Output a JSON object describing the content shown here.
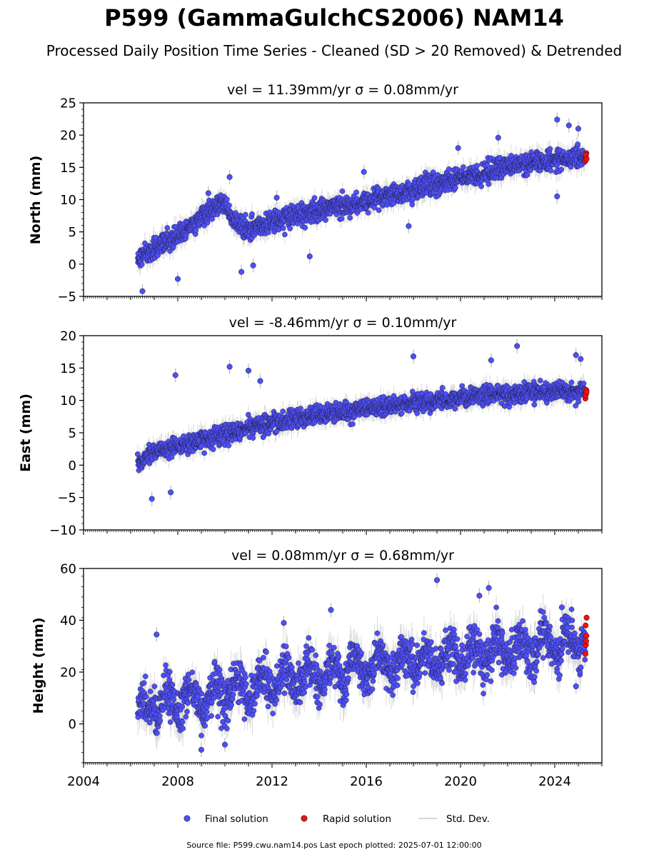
{
  "title": "P599 (GammaGulchCS2006) NAM14",
  "subtitle": "Processed Daily Position Time Series - Cleaned (SD > 20 Removed) & Detrended",
  "footer": "Source file: P599.cwu.nam14.pos  Last epoch plotted: 2025-07-01 12:00:00",
  "colors": {
    "final": "#4f4ff6",
    "rapid": "#ee1111",
    "std": "#bbbbbb"
  },
  "chart_data": [
    {
      "type": "scatter",
      "panel": "north",
      "title": "vel = 11.39mm/yr   σ = 0.08mm/yr",
      "ylabel": "North (mm)",
      "xlim": [
        2004,
        2026
      ],
      "ylim": [
        -5,
        25
      ],
      "yticks": [
        -5,
        0,
        5,
        10,
        15,
        20,
        25
      ],
      "ytick_labels": [
        "−5",
        "0",
        "5",
        "10",
        "15",
        "20",
        "25"
      ],
      "trend": [
        [
          2006.3,
          0.8
        ],
        [
          2007.0,
          2.5
        ],
        [
          2008.0,
          4.5
        ],
        [
          2009.0,
          7.5
        ],
        [
          2010.0,
          9.5
        ],
        [
          2010.3,
          7.0
        ],
        [
          2011.0,
          5.5
        ],
        [
          2012.0,
          6.5
        ],
        [
          2013.0,
          7.5
        ],
        [
          2014.0,
          8.5
        ],
        [
          2015.0,
          9.0
        ],
        [
          2016.0,
          9.8
        ],
        [
          2017.0,
          10.8
        ],
        [
          2018.0,
          11.5
        ],
        [
          2019.0,
          12.5
        ],
        [
          2020.0,
          13.5
        ],
        [
          2021.0,
          14.2
        ],
        [
          2022.0,
          15.0
        ],
        [
          2023.0,
          15.6
        ],
        [
          2024.0,
          16.2
        ],
        [
          2025.3,
          16.5
        ]
      ],
      "outliers": [
        [
          2006.5,
          -4.2
        ],
        [
          2008.0,
          -2.3
        ],
        [
          2009.3,
          11.0
        ],
        [
          2010.2,
          13.5
        ],
        [
          2010.7,
          -1.2
        ],
        [
          2011.2,
          -0.2
        ],
        [
          2012.2,
          10.3
        ],
        [
          2013.6,
          1.2
        ],
        [
          2015.9,
          14.3
        ],
        [
          2017.8,
          5.9
        ],
        [
          2019.9,
          18.0
        ],
        [
          2021.6,
          19.6
        ],
        [
          2024.1,
          22.4
        ],
        [
          2024.1,
          10.5
        ],
        [
          2024.6,
          21.5
        ],
        [
          2025.0,
          21.0
        ]
      ],
      "rapid": [
        [
          2025.3,
          16.0
        ],
        [
          2025.32,
          16.6
        ],
        [
          2025.34,
          17.2
        ],
        [
          2025.31,
          16.9
        ],
        [
          2025.35,
          16.3
        ]
      ]
    },
    {
      "type": "scatter",
      "panel": "east",
      "title": "vel = -8.46mm/yr   σ = 0.10mm/yr",
      "ylabel": "East (mm)",
      "xlim": [
        2004,
        2026
      ],
      "ylim": [
        -10,
        20
      ],
      "yticks": [
        -10,
        -5,
        0,
        5,
        10,
        15,
        20
      ],
      "ytick_labels": [
        "−10",
        "−5",
        "0",
        "5",
        "10",
        "15",
        "20"
      ],
      "trend": [
        [
          2006.3,
          0.5
        ],
        [
          2007.0,
          2.0
        ],
        [
          2008.0,
          3.0
        ],
        [
          2009.0,
          3.8
        ],
        [
          2010.0,
          4.8
        ],
        [
          2011.0,
          5.8
        ],
        [
          2012.0,
          6.6
        ],
        [
          2013.0,
          7.2
        ],
        [
          2014.0,
          7.8
        ],
        [
          2015.0,
          8.3
        ],
        [
          2016.0,
          8.8
        ],
        [
          2017.0,
          9.2
        ],
        [
          2018.0,
          9.6
        ],
        [
          2019.0,
          10.0
        ],
        [
          2020.0,
          10.4
        ],
        [
          2021.0,
          10.8
        ],
        [
          2022.0,
          11.0
        ],
        [
          2023.0,
          11.2
        ],
        [
          2024.0,
          11.4
        ],
        [
          2025.3,
          11.5
        ]
      ],
      "outliers": [
        [
          2006.9,
          -5.2
        ],
        [
          2007.7,
          -4.2
        ],
        [
          2007.9,
          13.9
        ],
        [
          2010.2,
          15.2
        ],
        [
          2011.0,
          14.6
        ],
        [
          2011.5,
          13.0
        ],
        [
          2018.0,
          16.8
        ],
        [
          2021.3,
          16.2
        ],
        [
          2022.4,
          18.4
        ],
        [
          2024.9,
          17.0
        ],
        [
          2025.1,
          16.4
        ]
      ],
      "rapid": [
        [
          2025.3,
          10.3
        ],
        [
          2025.32,
          11.0
        ],
        [
          2025.34,
          11.6
        ],
        [
          2025.31,
          10.8
        ],
        [
          2025.35,
          11.3
        ]
      ]
    },
    {
      "type": "scatter",
      "panel": "height",
      "title": "vel = 0.08mm/yr   σ = 0.68mm/yr",
      "ylabel": "Height (mm)",
      "xlim": [
        2004,
        2026
      ],
      "ylim": [
        -15,
        60
      ],
      "yticks": [
        0,
        20,
        40,
        60
      ],
      "ytick_labels": [
        "0",
        "20",
        "40",
        "60"
      ],
      "xticks": [
        2004,
        2008,
        2012,
        2016,
        2020,
        2024
      ],
      "xtick_labels": [
        "2004",
        "2008",
        "2012",
        "2016",
        "2020",
        "2024"
      ],
      "trend": [
        [
          2006.3,
          5.0
        ],
        [
          2007.0,
          7.0
        ],
        [
          2008.0,
          9.0
        ],
        [
          2009.0,
          10.0
        ],
        [
          2010.0,
          12.0
        ],
        [
          2011.0,
          14.0
        ],
        [
          2012.0,
          16.0
        ],
        [
          2013.0,
          17.5
        ],
        [
          2014.0,
          19.0
        ],
        [
          2015.0,
          20.0
        ],
        [
          2016.0,
          22.0
        ],
        [
          2017.0,
          23.0
        ],
        [
          2018.0,
          24.0
        ],
        [
          2019.0,
          25.0
        ],
        [
          2020.0,
          26.0
        ],
        [
          2021.0,
          27.5
        ],
        [
          2022.0,
          29.0
        ],
        [
          2023.0,
          30.0
        ],
        [
          2024.0,
          31.0
        ],
        [
          2025.3,
          32.0
        ]
      ],
      "outliers": [
        [
          2007.1,
          34.5
        ],
        [
          2009.0,
          -10.0
        ],
        [
          2010.0,
          -8.0
        ],
        [
          2012.5,
          39.0
        ],
        [
          2014.5,
          44.0
        ],
        [
          2019.0,
          55.5
        ],
        [
          2020.8,
          49.5
        ],
        [
          2021.2,
          52.5
        ],
        [
          2024.3,
          45.0
        ],
        [
          2024.9,
          14.5
        ]
      ],
      "rapid": [
        [
          2025.3,
          27.0
        ],
        [
          2025.32,
          30.5
        ],
        [
          2025.34,
          34.0
        ],
        [
          2025.31,
          38.0
        ],
        [
          2025.35,
          41.0
        ],
        [
          2025.33,
          32.0
        ]
      ]
    }
  ],
  "legend": {
    "placement": "bottom-center",
    "items": [
      {
        "label": "Final solution",
        "kind": "dot-blue"
      },
      {
        "label": "Rapid solution",
        "kind": "dot-red"
      },
      {
        "label": "Std. Dev.",
        "kind": "line-gray"
      }
    ]
  }
}
